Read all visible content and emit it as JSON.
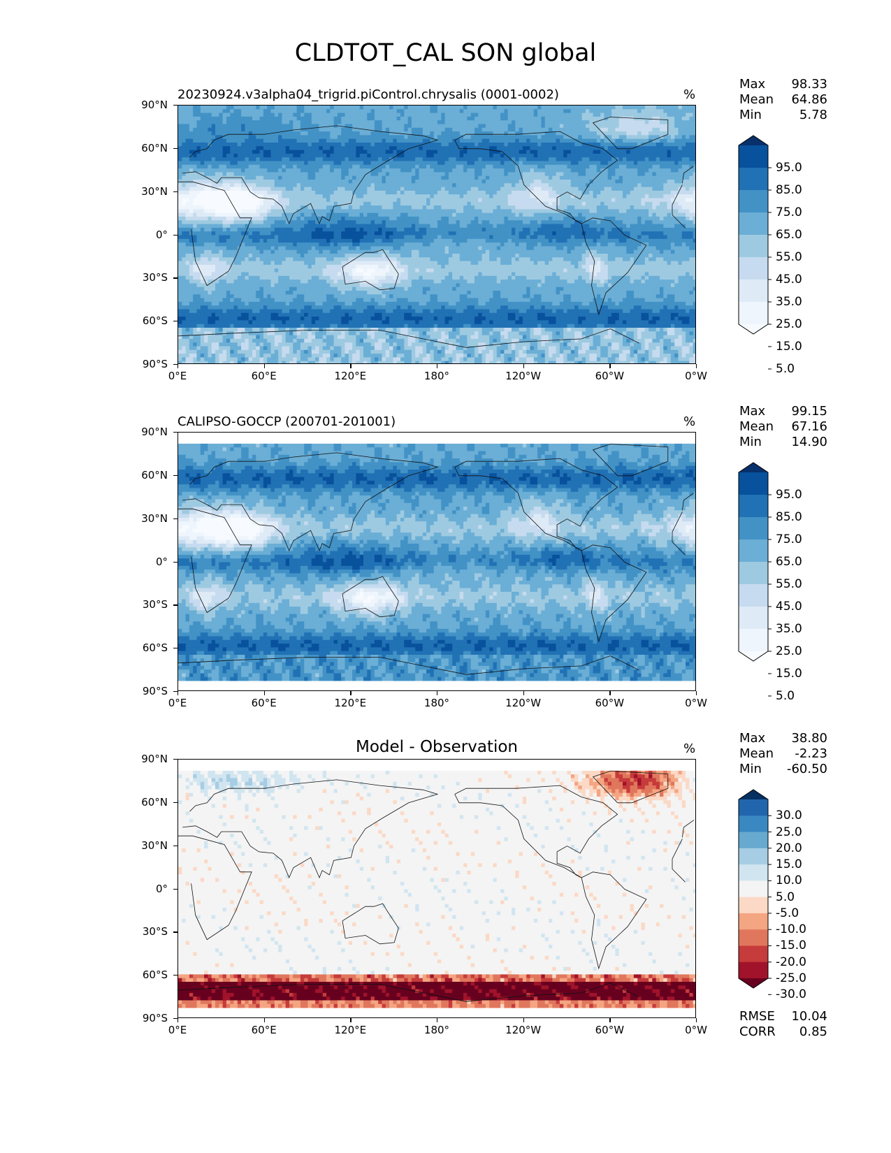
{
  "title": "CLDTOT_CAL SON global",
  "chart_data": [
    {
      "type": "heatmap",
      "title": "20230924.v3alpha04_trigrid.piControl.chrysalis (0001-0002)",
      "units": "%",
      "xticks": [
        "0°E",
        "60°E",
        "120°E",
        "180°",
        "120°W",
        "60°W",
        "0°W"
      ],
      "yticks": [
        "90°N",
        "60°N",
        "30°N",
        "0°",
        "30°S",
        "60°S",
        "90°S"
      ],
      "stats": {
        "Max": "98.33",
        "Mean": "64.86",
        "Min": "5.78"
      },
      "colorbar": {
        "levels": [
          "95.0",
          "85.0",
          "75.0",
          "65.0",
          "55.0",
          "45.0",
          "35.0",
          "25.0",
          "15.0",
          "5.0"
        ],
        "colors": [
          "#08306b",
          "#08519c",
          "#2171b5",
          "#4292c6",
          "#6baed6",
          "#9ecae1",
          "#c6dbef",
          "#deebf7",
          "#eef5fc",
          "#f7fbff"
        ],
        "extend": "both"
      },
      "cmap": "Blues"
    },
    {
      "type": "heatmap",
      "title": "CALIPSO-GOCCP (200701-201001)",
      "units": "%",
      "xticks": [
        "0°E",
        "60°E",
        "120°E",
        "180°",
        "120°W",
        "60°W",
        "0°W"
      ],
      "yticks": [
        "90°N",
        "60°N",
        "30°N",
        "0°",
        "30°S",
        "60°S",
        "90°S"
      ],
      "stats": {
        "Max": "99.15",
        "Mean": "67.16",
        "Min": "14.90"
      },
      "colorbar": {
        "levels": [
          "95.0",
          "85.0",
          "75.0",
          "65.0",
          "55.0",
          "45.0",
          "35.0",
          "25.0",
          "15.0",
          "5.0"
        ],
        "colors": [
          "#08306b",
          "#08519c",
          "#2171b5",
          "#4292c6",
          "#6baed6",
          "#9ecae1",
          "#c6dbef",
          "#deebf7",
          "#eef5fc",
          "#f7fbff"
        ],
        "extend": "both"
      },
      "cmap": "Blues"
    },
    {
      "type": "heatmap",
      "title": "Model - Observation",
      "units": "%",
      "xticks": [
        "0°E",
        "60°E",
        "120°E",
        "180°",
        "120°W",
        "60°W",
        "0°W"
      ],
      "yticks": [
        "90°N",
        "60°N",
        "30°N",
        "0°",
        "30°S",
        "60°S",
        "90°S"
      ],
      "stats": {
        "Max": "38.80",
        "Mean": "-2.23",
        "Min": "-60.50"
      },
      "metrics": {
        "RMSE": "10.04",
        "CORR": "0.85"
      },
      "colorbar": {
        "levels": [
          "30.0",
          "25.0",
          "20.0",
          "15.0",
          "10.0",
          "5.0",
          "-5.0",
          "-10.0",
          "-15.0",
          "-20.0",
          "-25.0",
          "-30.0"
        ],
        "colors": [
          "#053061",
          "#2166ac",
          "#3a88c1",
          "#67a9cf",
          "#a6cde3",
          "#d1e5f0",
          "#f4f4f4",
          "#fbd9c6",
          "#f4a582",
          "#e0775d",
          "#c63b3b",
          "#a0132a",
          "#67001f"
        ],
        "extend": "both"
      },
      "cmap": "RdBu_r"
    }
  ]
}
